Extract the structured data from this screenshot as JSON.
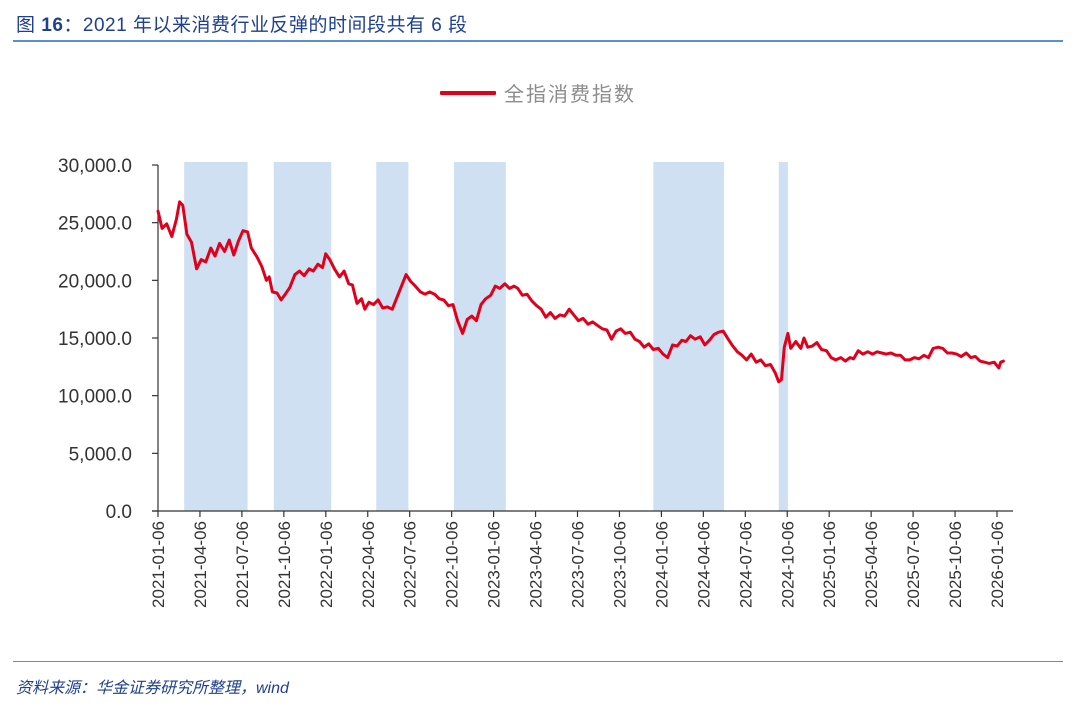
{
  "figure": {
    "title_prefix": "图 ",
    "title_number": "16",
    "title_text": "：2021 年以来消费行业反弹的时间段共有 6 段",
    "source": "资料来源：华金证券研究所整理，wind"
  },
  "colors": {
    "line": "#e0001b",
    "band": "#cfe0f2",
    "axis": "#333333",
    "title": "#1f3f8f",
    "rule": "#5b8fd4"
  },
  "chart_data": {
    "type": "line",
    "title": "",
    "xlabel": "",
    "ylabel": "",
    "ylim": [
      0,
      30000
    ],
    "grid": false,
    "legend_position": "top-center",
    "y_ticks": [
      "0.0",
      "5,000.0",
      "10,000.0",
      "15,000.0",
      "20,000.0",
      "25,000.0",
      "30,000.0"
    ],
    "x_ticks": [
      "2021-01-06",
      "2021-04-06",
      "2021-07-06",
      "2021-10-06",
      "2022-01-06",
      "2022-04-06",
      "2022-07-06",
      "2022-10-06",
      "2023-01-06",
      "2023-04-06",
      "2023-07-06",
      "2023-10-06",
      "2024-01-06",
      "2024-04-06",
      "2024-07-06",
      "2024-10-06",
      "2025-01-06",
      "2025-04-06",
      "2025-07-06",
      "2025-10-06",
      "2026-01-06"
    ],
    "series": [
      {
        "name": "全指消费指数",
        "points": [
          [
            "2021-01-06",
            26000
          ],
          [
            "2021-01-15",
            24500
          ],
          [
            "2021-01-25",
            24900
          ],
          [
            "2021-02-05",
            23800
          ],
          [
            "2021-02-15",
            25300
          ],
          [
            "2021-02-22",
            26800
          ],
          [
            "2021-03-01",
            26500
          ],
          [
            "2021-03-10",
            24000
          ],
          [
            "2021-03-20",
            23300
          ],
          [
            "2021-03-31",
            21000
          ],
          [
            "2021-04-10",
            21800
          ],
          [
            "2021-04-20",
            21600
          ],
          [
            "2021-05-01",
            22800
          ],
          [
            "2021-05-10",
            22100
          ],
          [
            "2021-05-20",
            23200
          ],
          [
            "2021-05-31",
            22500
          ],
          [
            "2021-06-10",
            23500
          ],
          [
            "2021-06-20",
            22200
          ],
          [
            "2021-06-30",
            23400
          ],
          [
            "2021-07-10",
            24300
          ],
          [
            "2021-07-20",
            24200
          ],
          [
            "2021-07-28",
            22800
          ],
          [
            "2021-08-10",
            22000
          ],
          [
            "2021-08-20",
            21200
          ],
          [
            "2021-08-30",
            20000
          ],
          [
            "2021-09-05",
            20300
          ],
          [
            "2021-09-12",
            19000
          ],
          [
            "2021-09-22",
            18900
          ],
          [
            "2021-10-01",
            18300
          ],
          [
            "2021-10-10",
            18800
          ],
          [
            "2021-10-20",
            19400
          ],
          [
            "2021-10-31",
            20500
          ],
          [
            "2021-11-10",
            20800
          ],
          [
            "2021-11-20",
            20400
          ],
          [
            "2021-12-01",
            21000
          ],
          [
            "2021-12-10",
            20800
          ],
          [
            "2021-12-20",
            21400
          ],
          [
            "2021-12-30",
            21100
          ],
          [
            "2022-01-06",
            22300
          ],
          [
            "2022-01-15",
            21800
          ],
          [
            "2022-01-25",
            21000
          ],
          [
            "2022-02-05",
            20300
          ],
          [
            "2022-02-15",
            20800
          ],
          [
            "2022-02-25",
            19700
          ],
          [
            "2022-03-05",
            19600
          ],
          [
            "2022-03-15",
            18000
          ],
          [
            "2022-03-25",
            18400
          ],
          [
            "2022-04-01",
            17500
          ],
          [
            "2022-04-10",
            18100
          ],
          [
            "2022-04-20",
            17900
          ],
          [
            "2022-04-30",
            18300
          ],
          [
            "2022-05-10",
            17600
          ],
          [
            "2022-05-20",
            17700
          ],
          [
            "2022-05-31",
            17500
          ],
          [
            "2022-06-10",
            18500
          ],
          [
            "2022-06-20",
            19500
          ],
          [
            "2022-06-30",
            20500
          ],
          [
            "2022-07-10",
            19900
          ],
          [
            "2022-07-20",
            19500
          ],
          [
            "2022-07-31",
            19000
          ],
          [
            "2022-08-10",
            18800
          ],
          [
            "2022-08-20",
            19000
          ],
          [
            "2022-08-31",
            18800
          ],
          [
            "2022-09-10",
            18400
          ],
          [
            "2022-09-20",
            18300
          ],
          [
            "2022-09-30",
            17800
          ],
          [
            "2022-10-10",
            17900
          ],
          [
            "2022-10-20",
            16500
          ],
          [
            "2022-10-31",
            15400
          ],
          [
            "2022-11-10",
            16600
          ],
          [
            "2022-11-20",
            16900
          ],
          [
            "2022-11-30",
            16500
          ],
          [
            "2022-12-10",
            17900
          ],
          [
            "2022-12-20",
            18400
          ],
          [
            "2022-12-31",
            18700
          ],
          [
            "2023-01-10",
            19500
          ],
          [
            "2023-01-20",
            19300
          ],
          [
            "2023-01-31",
            19700
          ],
          [
            "2023-02-10",
            19300
          ],
          [
            "2023-02-20",
            19500
          ],
          [
            "2023-02-28",
            19300
          ],
          [
            "2023-03-10",
            18700
          ],
          [
            "2023-03-20",
            18800
          ],
          [
            "2023-03-31",
            18200
          ],
          [
            "2023-04-10",
            17800
          ],
          [
            "2023-04-20",
            17500
          ],
          [
            "2023-04-30",
            16800
          ],
          [
            "2023-05-10",
            17200
          ],
          [
            "2023-05-20",
            16700
          ],
          [
            "2023-05-31",
            17000
          ],
          [
            "2023-06-10",
            16900
          ],
          [
            "2023-06-20",
            17500
          ],
          [
            "2023-06-30",
            17000
          ],
          [
            "2023-07-10",
            16500
          ],
          [
            "2023-07-20",
            16700
          ],
          [
            "2023-07-31",
            16200
          ],
          [
            "2023-08-10",
            16400
          ],
          [
            "2023-08-20",
            16100
          ],
          [
            "2023-08-31",
            15800
          ],
          [
            "2023-09-10",
            15700
          ],
          [
            "2023-09-20",
            14900
          ],
          [
            "2023-09-30",
            15600
          ],
          [
            "2023-10-10",
            15800
          ],
          [
            "2023-10-20",
            15400
          ],
          [
            "2023-10-31",
            15500
          ],
          [
            "2023-11-10",
            14900
          ],
          [
            "2023-11-20",
            14700
          ],
          [
            "2023-11-30",
            14200
          ],
          [
            "2023-12-10",
            14500
          ],
          [
            "2023-12-20",
            14000
          ],
          [
            "2023-12-31",
            14100
          ],
          [
            "2024-01-10",
            13600
          ],
          [
            "2024-01-20",
            13300
          ],
          [
            "2024-01-31",
            14400
          ],
          [
            "2024-02-10",
            14300
          ],
          [
            "2024-02-20",
            14800
          ],
          [
            "2024-02-29",
            14700
          ],
          [
            "2024-03-10",
            15200
          ],
          [
            "2024-03-20",
            14900
          ],
          [
            "2024-03-31",
            15100
          ],
          [
            "2024-04-10",
            14400
          ],
          [
            "2024-04-20",
            14800
          ],
          [
            "2024-04-30",
            15300
          ],
          [
            "2024-05-10",
            15500
          ],
          [
            "2024-05-20",
            15600
          ],
          [
            "2024-05-31",
            14900
          ],
          [
            "2024-06-10",
            14300
          ],
          [
            "2024-06-20",
            13800
          ],
          [
            "2024-06-30",
            13500
          ],
          [
            "2024-07-10",
            13100
          ],
          [
            "2024-07-20",
            13600
          ],
          [
            "2024-07-31",
            12900
          ],
          [
            "2024-08-10",
            13100
          ],
          [
            "2024-08-20",
            12600
          ],
          [
            "2024-08-31",
            12700
          ],
          [
            "2024-09-10",
            12000
          ],
          [
            "2024-09-18",
            11200
          ],
          [
            "2024-09-24",
            11400
          ],
          [
            "2024-09-30",
            14200
          ],
          [
            "2024-10-08",
            15400
          ],
          [
            "2024-10-14",
            14100
          ],
          [
            "2024-10-25",
            14700
          ],
          [
            "2024-11-05",
            14100
          ],
          [
            "2024-11-12",
            15000
          ],
          [
            "2024-11-20",
            14200
          ],
          [
            "2024-11-30",
            14300
          ],
          [
            "2024-12-10",
            14600
          ],
          [
            "2024-12-20",
            14000
          ],
          [
            "2024-12-31",
            13900
          ],
          [
            "2025-01-10",
            13300
          ],
          [
            "2025-01-20",
            13100
          ],
          [
            "2025-01-31",
            13300
          ],
          [
            "2025-02-10",
            13000
          ],
          [
            "2025-02-20",
            13300
          ],
          [
            "2025-02-28",
            13200
          ],
          [
            "2025-03-10",
            13900
          ],
          [
            "2025-03-20",
            13600
          ],
          [
            "2025-03-31",
            13800
          ],
          [
            "2025-04-10",
            13600
          ],
          [
            "2025-04-20",
            13800
          ],
          [
            "2025-04-30",
            13700
          ],
          [
            "2025-05-10",
            13600
          ],
          [
            "2025-05-20",
            13700
          ],
          [
            "2025-05-31",
            13500
          ],
          [
            "2025-06-10",
            13500
          ],
          [
            "2025-06-20",
            13100
          ],
          [
            "2025-06-30",
            13100
          ],
          [
            "2025-07-10",
            13300
          ],
          [
            "2025-07-20",
            13200
          ],
          [
            "2025-07-31",
            13500
          ],
          [
            "2025-08-10",
            13300
          ],
          [
            "2025-08-20",
            14100
          ],
          [
            "2025-08-31",
            14200
          ],
          [
            "2025-09-10",
            14100
          ],
          [
            "2025-09-20",
            13700
          ],
          [
            "2025-09-30",
            13700
          ],
          [
            "2025-10-10",
            13600
          ],
          [
            "2025-10-20",
            13400
          ],
          [
            "2025-10-31",
            13700
          ],
          [
            "2025-11-10",
            13300
          ],
          [
            "2025-11-20",
            13400
          ],
          [
            "2025-11-30",
            13000
          ],
          [
            "2025-12-10",
            12900
          ],
          [
            "2025-12-20",
            12800
          ],
          [
            "2025-12-31",
            12900
          ],
          [
            "2026-01-10",
            12400
          ],
          [
            "2026-01-14",
            12900
          ],
          [
            "2026-01-20",
            13000
          ]
        ]
      }
    ],
    "shaded_periods": [
      {
        "start": "2021-03-04",
        "end": "2021-07-20"
      },
      {
        "start": "2021-09-15",
        "end": "2022-01-18"
      },
      {
        "start": "2022-04-26",
        "end": "2022-07-05"
      },
      {
        "start": "2022-10-12",
        "end": "2023-02-02"
      },
      {
        "start": "2023-12-20",
        "end": "2024-05-22"
      },
      {
        "start": "2024-09-18",
        "end": "2024-10-08"
      }
    ],
    "shaded_count": 6
  }
}
